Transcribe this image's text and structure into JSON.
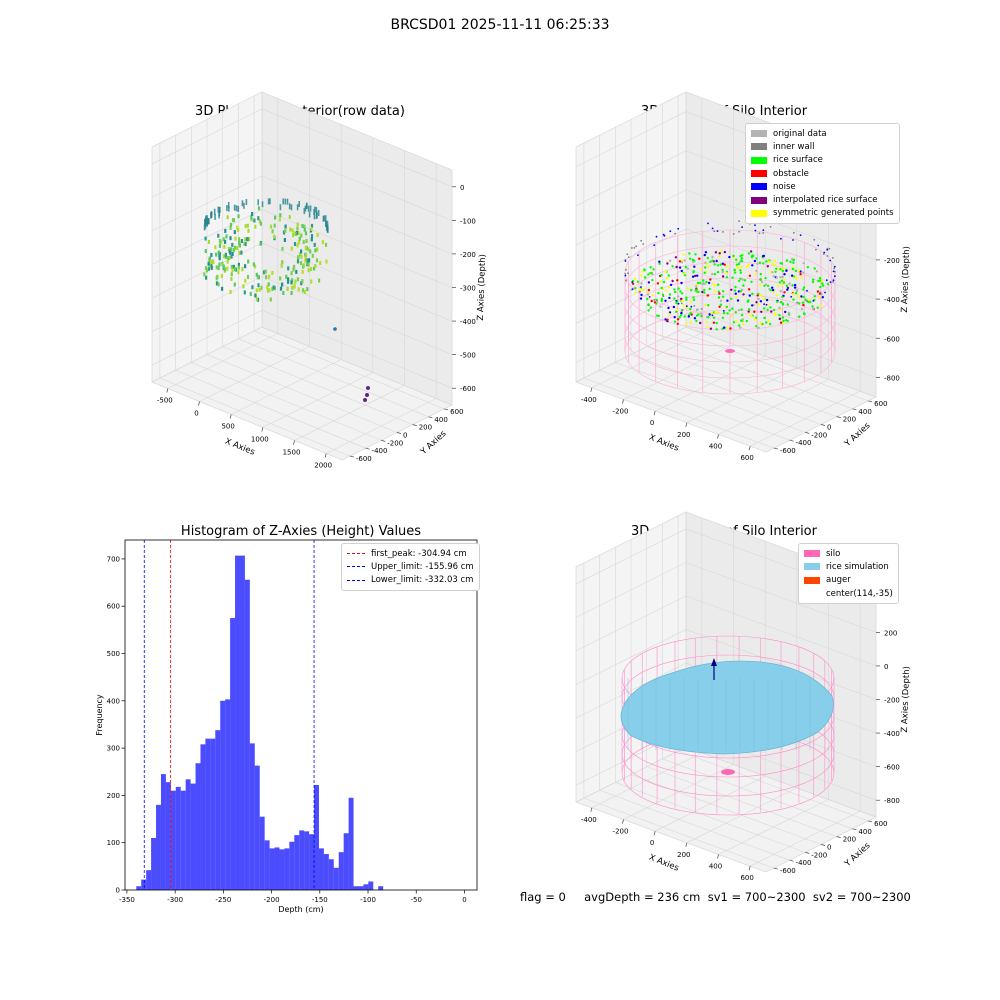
{
  "suptitle": "BRCSD01 2025-11-11 06:25:33",
  "panels": {
    "raw": {
      "title": "3D Plot of Silo Interior(row data)",
      "xlabel": "X Axies",
      "ylabel": "Y Axies",
      "zlabel": "Z Axies (Depth)",
      "xticks": [
        "-500",
        "0",
        "500",
        "1000",
        "1500",
        "2000"
      ],
      "yticks": [
        "600",
        "400",
        "200",
        "0",
        "-200",
        "-400",
        "-600"
      ],
      "zticks": [
        "0",
        "-100",
        "-200",
        "-300",
        "-400",
        "-500",
        "-600"
      ]
    },
    "classify": {
      "title": "3D classify of Silo Interior",
      "xlabel": "X Axies",
      "ylabel": "Y Axies",
      "zlabel": "Z Axies (Depth)",
      "xticks": [
        "-400",
        "-200",
        "0",
        "200",
        "400",
        "600"
      ],
      "yticks": [
        "600",
        "400",
        "200",
        "0",
        "-200",
        "-400",
        "-600"
      ],
      "zticks": [
        "200",
        "0",
        "-200",
        "-400",
        "-600",
        "-800"
      ],
      "legend": [
        {
          "label": "original data",
          "color": "#b3b3b3"
        },
        {
          "label": "inner wall",
          "color": "#808080"
        },
        {
          "label": "rice surface",
          "color": "#00ff00"
        },
        {
          "label": "obstacle",
          "color": "#ff0000"
        },
        {
          "label": "noise",
          "color": "#0000ff"
        },
        {
          "label": "interpolated rice surface",
          "color": "#800080"
        },
        {
          "label": "symmetric generated points",
          "color": "#ffff00"
        }
      ]
    },
    "simulation": {
      "title": "3D simulation of Silo Interior",
      "xlabel": "X Axies",
      "ylabel": "Y Axies",
      "zlabel": "Z Axies (Depth)",
      "xticks": [
        "-400",
        "-200",
        "0",
        "200",
        "400",
        "600"
      ],
      "yticks": [
        "600",
        "400",
        "200",
        "0",
        "-200",
        "-400",
        "-600"
      ],
      "zticks": [
        "400",
        "200",
        "0",
        "-200",
        "-400",
        "-600",
        "-800"
      ],
      "legend": [
        {
          "label": "silo",
          "color": "#ff69b4"
        },
        {
          "label": "rice simulation",
          "color": "#87ceeb"
        },
        {
          "label": "auger",
          "color": "#ff4500"
        },
        {
          "label": "center(114,-35)",
          "color": ""
        }
      ]
    },
    "footer": "flag = 0     avgDepth = 236 cm  sv1 = 700~2300  sv2 = 700~2300"
  },
  "chart_data": [
    {
      "type": "bar",
      "title": "Histogram of Z-Axies (Height) Values",
      "xlabel": "Depth (cm)",
      "ylabel": "Frequency",
      "xlim": [
        -352,
        13
      ],
      "ylim": [
        0,
        740
      ],
      "xticks": [
        -350,
        -300,
        -250,
        -200,
        -150,
        -100,
        -50,
        0
      ],
      "yticks": [
        0,
        100,
        200,
        300,
        400,
        500,
        600,
        700
      ],
      "bar_color": "#0000ff",
      "bin_start": -340.3,
      "bin_width": 5.12,
      "values": [
        8,
        22,
        42,
        110,
        180,
        245,
        228,
        210,
        218,
        210,
        234,
        225,
        268,
        308,
        320,
        320,
        338,
        400,
        403,
        575,
        707,
        707,
        656,
        310,
        263,
        155,
        105,
        88,
        90,
        86,
        88,
        102,
        116,
        126,
        124,
        118,
        222,
        88,
        76,
        65,
        47,
        80,
        120,
        195,
        8,
        8,
        12,
        18,
        0,
        8
      ],
      "vlines": [
        {
          "label": "first_peak: -304.94 cm",
          "x": -304.94,
          "color": "#ff0000"
        },
        {
          "label": "Upper_limit: -155.96 cm",
          "x": -155.96,
          "color": "#0000ff"
        },
        {
          "label": "Lower_limit: -332.03 cm",
          "x": -332.03,
          "color": "#0000ff"
        }
      ]
    }
  ]
}
